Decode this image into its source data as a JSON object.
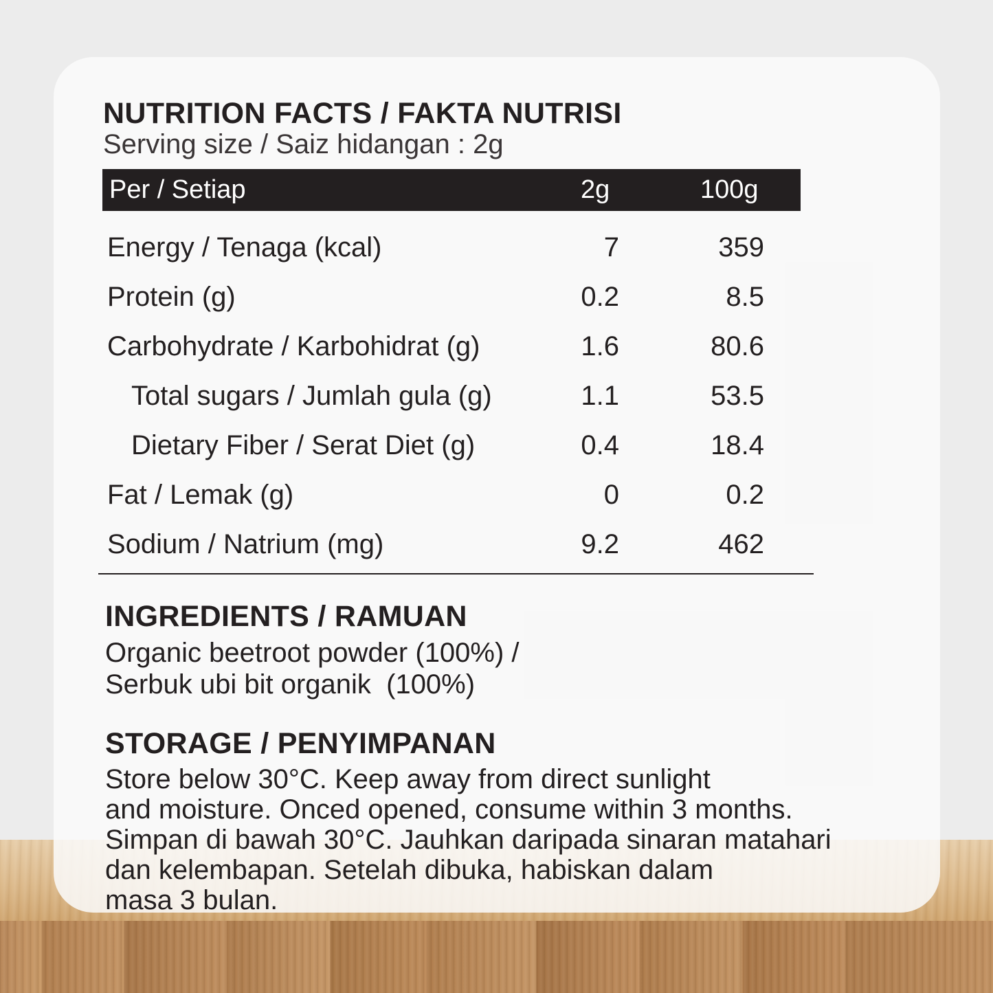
{
  "nutrition": {
    "title": "NUTRITION FACTS / FAKTA NUTRISI",
    "serving_size": "Serving size / Saiz hidangan : 2g",
    "header": {
      "label": "Per / Setiap",
      "col1": "2g",
      "col2": "100g"
    },
    "rows": [
      {
        "label": "Energy / Tenaga (kcal)",
        "per_2g": "7",
        "per_100g": "359",
        "indent": false
      },
      {
        "label": "Protein (g)",
        "per_2g": "0.2",
        "per_100g": "8.5",
        "indent": false
      },
      {
        "label": "Carbohydrate / Karbohidrat (g)",
        "per_2g": "1.6",
        "per_100g": "80.6",
        "indent": false
      },
      {
        "label": "Total sugars / Jumlah gula (g)",
        "per_2g": "1.1",
        "per_100g": "53.5",
        "indent": true
      },
      {
        "label": "Dietary Fiber / Serat Diet (g)",
        "per_2g": "0.4",
        "per_100g": "18.4",
        "indent": true
      },
      {
        "label": "Fat / Lemak (g)",
        "per_2g": "0",
        "per_100g": "0.2",
        "indent": false
      },
      {
        "label": "Sodium / Natrium (mg)",
        "per_2g": "9.2",
        "per_100g": "462",
        "indent": false
      }
    ]
  },
  "ingredients": {
    "title": "INGREDIENTS / RAMUAN",
    "line1": "Organic beetroot powder (100%) /",
    "line2": "Serbuk ubi bit organik  (100%)"
  },
  "storage": {
    "title": "STORAGE / PENYIMPANAN",
    "lines": [
      "Store below 30°C. Keep away from direct sunlight",
      "and moisture. Onced opened, consume within 3 months.",
      "Simpan di bawah 30°C. Jauhkan daripada sinaran matahari",
      "dan kelembapan. Setelah dibuka, habiskan dalam",
      "masa 3 bulan."
    ]
  },
  "colors": {
    "text": "#231f20",
    "header_bg": "#231f20",
    "card_bg": "#fafafa",
    "page_bg": "#ececec"
  }
}
